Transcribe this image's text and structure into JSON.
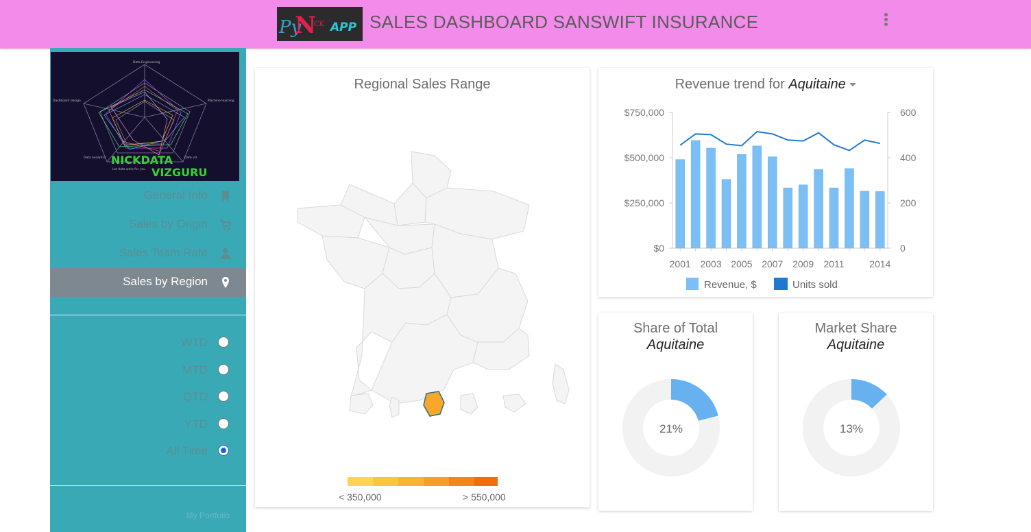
{
  "header": {
    "logo_text_py": "Py",
    "logo_text_n": "N",
    "logo_text_ick": "ICK",
    "logo_text_app": "APP",
    "title": "SALES DASHBOARD SANSWIFT INSURANCE"
  },
  "sidebar": {
    "image_text_1": "NICKDATA",
    "image_text_2": "VIZGURU",
    "nav": [
      {
        "label": "General Info",
        "icon": "bookmark-icon"
      },
      {
        "label": "Sales by Origin",
        "icon": "cart-icon"
      },
      {
        "label": "Sales Team Rate",
        "icon": "user-icon"
      },
      {
        "label": "Sales by Region",
        "icon": "map-marker-icon",
        "active": true
      }
    ],
    "periods": [
      {
        "label": "WTD",
        "checked": false
      },
      {
        "label": "MTD",
        "checked": false
      },
      {
        "label": "QTD",
        "checked": false
      },
      {
        "label": "YTD",
        "checked": false
      },
      {
        "label": "All Time",
        "checked": true
      }
    ],
    "portfolio_link": "My Portfolio"
  },
  "map_card": {
    "title": "Regional Sales Range",
    "legend_min": "< 350,000",
    "legend_max": "> 550,000",
    "legend_colors": [
      "#fdd455",
      "#fcc541",
      "#fbb336",
      "#f89d2b",
      "#f4851d",
      "#f06e0b"
    ],
    "highlight_color": "#f9a72b"
  },
  "revenue_card": {
    "title": "Revenue trend for",
    "region": "Aquitaine"
  },
  "chart_data": {
    "type": "bar",
    "x": [
      2001,
      2002,
      2003,
      2004,
      2005,
      2006,
      2007,
      2008,
      2009,
      2010,
      2011,
      2012,
      2013,
      2014
    ],
    "x_tick_labels": [
      "2001",
      "2003",
      "2005",
      "2007",
      "2009",
      "2011",
      "2014"
    ],
    "series": [
      {
        "name": "Revenue, $",
        "type": "bar",
        "axis": "left",
        "color": "#7bbff5",
        "values": [
          490000,
          595000,
          553000,
          380000,
          518000,
          565000,
          505000,
          333000,
          350000,
          435000,
          333000,
          440000,
          315000,
          313000
        ]
      },
      {
        "name": "Units sold",
        "type": "line",
        "axis": "right",
        "color": "#1f78d1",
        "values": [
          455,
          505,
          502,
          460,
          453,
          515,
          505,
          478,
          474,
          510,
          457,
          432,
          478,
          463
        ]
      }
    ],
    "y_left": {
      "ticks": [
        "$0",
        "$250,000",
        "$500,000",
        "$750,000"
      ],
      "ylim": [
        0,
        750000
      ]
    },
    "y_right": {
      "ticks": [
        "0",
        "200",
        "400",
        "600"
      ],
      "ylim": [
        0,
        600
      ]
    },
    "legend": "bottom"
  },
  "share_card": {
    "title": "Share of Total",
    "region": "Aquitaine",
    "percent_label": "21%",
    "value": 0.21
  },
  "market_card": {
    "title": "Market Share",
    "region": "Aquitaine",
    "percent_label": "13%",
    "value": 0.13
  },
  "colors": {
    "header": "#f28be9",
    "sidebar": "#3aa9b6",
    "active_nav": "#7d8890",
    "donut_fill": "#67b1f0",
    "donut_track": "#f2f2f2",
    "map_region": "#f4f4f4"
  }
}
